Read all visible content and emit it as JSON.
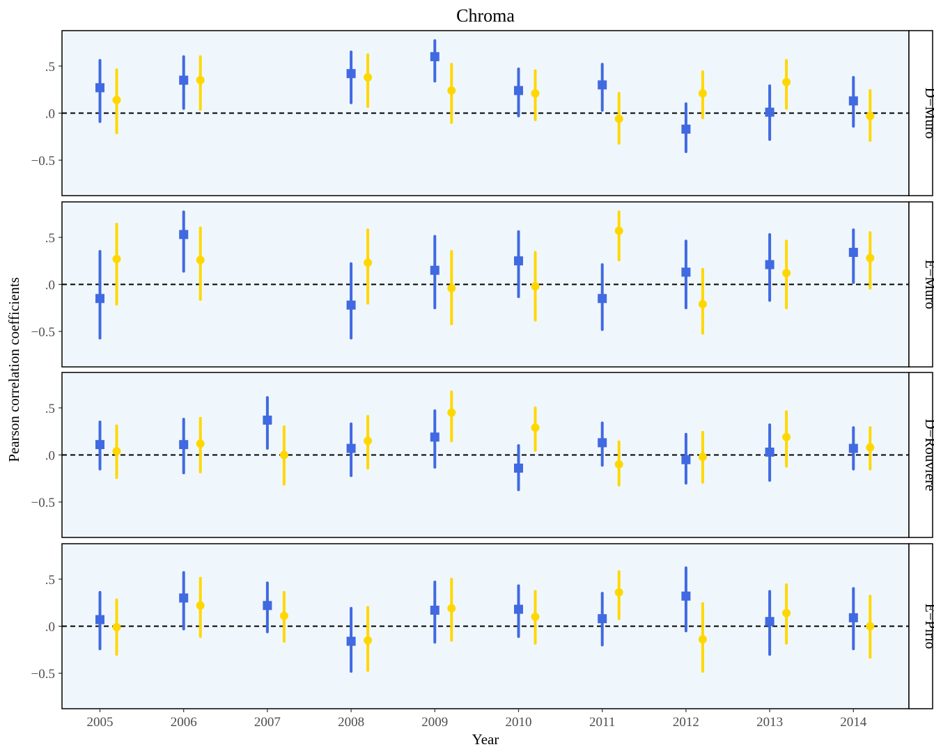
{
  "chart_data": {
    "type": "scatter",
    "title": "Chroma",
    "xlabel": "Year",
    "ylabel": "Pearson correlation coefficients",
    "x_ticks": [
      "2005",
      "2006",
      "2007",
      "2008",
      "2009",
      "2010",
      "2011",
      "2012",
      "2013",
      "2014"
    ],
    "y_ticks": [
      {
        "value": 0.5,
        "label": ".5"
      },
      {
        "value": 0.0,
        "label": ".0"
      },
      {
        "value": -0.5,
        "label": "−0.5"
      }
    ],
    "ylim": [
      -0.88,
      0.88
    ],
    "reference_line": {
      "value": 0,
      "style": "dashed"
    },
    "panel_background": "#eff7fc",
    "series_styles": [
      {
        "key": "a",
        "color": "#4169e1",
        "marker": "square",
        "x_offset": 0
      },
      {
        "key": "b",
        "color": "#ffd700",
        "marker": "circle",
        "x_offset": 0.2
      }
    ],
    "panels": [
      {
        "label": "D−Muro",
        "a": [
          {
            "x": "2005",
            "y": 0.27,
            "lo": -0.09,
            "hi": 0.56
          },
          {
            "x": "2006",
            "y": 0.35,
            "lo": 0.05,
            "hi": 0.6
          },
          {
            "x": "2008",
            "y": 0.42,
            "lo": 0.11,
            "hi": 0.65
          },
          {
            "x": "2009",
            "y": 0.6,
            "lo": 0.34,
            "hi": 0.77
          },
          {
            "x": "2010",
            "y": 0.24,
            "lo": -0.03,
            "hi": 0.47
          },
          {
            "x": "2011",
            "y": 0.3,
            "lo": 0.03,
            "hi": 0.52
          },
          {
            "x": "2012",
            "y": -0.17,
            "lo": -0.41,
            "hi": 0.1
          },
          {
            "x": "2013",
            "y": 0.01,
            "lo": -0.28,
            "hi": 0.29
          },
          {
            "x": "2014",
            "y": 0.13,
            "lo": -0.14,
            "hi": 0.38
          }
        ],
        "b": [
          {
            "x": "2005",
            "y": 0.14,
            "lo": -0.21,
            "hi": 0.46
          },
          {
            "x": "2006",
            "y": 0.35,
            "lo": 0.04,
            "hi": 0.6
          },
          {
            "x": "2008",
            "y": 0.38,
            "lo": 0.07,
            "hi": 0.62
          },
          {
            "x": "2009",
            "y": 0.24,
            "lo": -0.1,
            "hi": 0.52
          },
          {
            "x": "2010",
            "y": 0.21,
            "lo": -0.07,
            "hi": 0.45
          },
          {
            "x": "2011",
            "y": -0.06,
            "lo": -0.32,
            "hi": 0.21
          },
          {
            "x": "2012",
            "y": 0.21,
            "lo": -0.05,
            "hi": 0.44
          },
          {
            "x": "2013",
            "y": 0.33,
            "lo": 0.05,
            "hi": 0.56
          },
          {
            "x": "2014",
            "y": -0.03,
            "lo": -0.29,
            "hi": 0.24
          }
        ]
      },
      {
        "label": "E−Muro",
        "a": [
          {
            "x": "2005",
            "y": -0.15,
            "lo": -0.57,
            "hi": 0.35
          },
          {
            "x": "2006",
            "y": 0.53,
            "lo": 0.14,
            "hi": 0.77
          },
          {
            "x": "2008",
            "y": -0.22,
            "lo": -0.57,
            "hi": 0.22
          },
          {
            "x": "2009",
            "y": 0.15,
            "lo": -0.25,
            "hi": 0.51
          },
          {
            "x": "2010",
            "y": 0.25,
            "lo": -0.13,
            "hi": 0.56
          },
          {
            "x": "2011",
            "y": -0.15,
            "lo": -0.48,
            "hi": 0.21
          },
          {
            "x": "2012",
            "y": 0.13,
            "lo": -0.25,
            "hi": 0.46
          },
          {
            "x": "2013",
            "y": 0.21,
            "lo": -0.17,
            "hi": 0.53
          },
          {
            "x": "2014",
            "y": 0.34,
            "lo": 0.02,
            "hi": 0.58
          }
        ],
        "b": [
          {
            "x": "2005",
            "y": 0.27,
            "lo": -0.21,
            "hi": 0.64
          },
          {
            "x": "2006",
            "y": 0.26,
            "lo": -0.16,
            "hi": 0.6
          },
          {
            "x": "2008",
            "y": 0.23,
            "lo": -0.2,
            "hi": 0.58
          },
          {
            "x": "2009",
            "y": -0.04,
            "lo": -0.42,
            "hi": 0.35
          },
          {
            "x": "2010",
            "y": -0.02,
            "lo": -0.38,
            "hi": 0.34
          },
          {
            "x": "2011",
            "y": 0.57,
            "lo": 0.26,
            "hi": 0.77
          },
          {
            "x": "2012",
            "y": -0.21,
            "lo": -0.52,
            "hi": 0.16
          },
          {
            "x": "2013",
            "y": 0.12,
            "lo": -0.25,
            "hi": 0.46
          },
          {
            "x": "2014",
            "y": 0.28,
            "lo": -0.04,
            "hi": 0.55
          }
        ]
      },
      {
        "label": "D−Rouvière",
        "a": [
          {
            "x": "2005",
            "y": 0.11,
            "lo": -0.15,
            "hi": 0.35
          },
          {
            "x": "2006",
            "y": 0.11,
            "lo": -0.19,
            "hi": 0.38
          },
          {
            "x": "2007",
            "y": 0.37,
            "lo": 0.07,
            "hi": 0.61
          },
          {
            "x": "2008",
            "y": 0.07,
            "lo": -0.22,
            "hi": 0.33
          },
          {
            "x": "2009",
            "y": 0.19,
            "lo": -0.13,
            "hi": 0.47
          },
          {
            "x": "2010",
            "y": -0.14,
            "lo": -0.37,
            "hi": 0.1
          },
          {
            "x": "2011",
            "y": 0.13,
            "lo": -0.11,
            "hi": 0.34
          },
          {
            "x": "2012",
            "y": -0.05,
            "lo": -0.3,
            "hi": 0.22
          },
          {
            "x": "2013",
            "y": 0.03,
            "lo": -0.27,
            "hi": 0.32
          },
          {
            "x": "2014",
            "y": 0.07,
            "lo": -0.15,
            "hi": 0.29
          }
        ],
        "b": [
          {
            "x": "2005",
            "y": 0.04,
            "lo": -0.24,
            "hi": 0.31
          },
          {
            "x": "2006",
            "y": 0.12,
            "lo": -0.18,
            "hi": 0.39
          },
          {
            "x": "2007",
            "y": 0.0,
            "lo": -0.31,
            "hi": 0.3
          },
          {
            "x": "2008",
            "y": 0.15,
            "lo": -0.14,
            "hi": 0.41
          },
          {
            "x": "2009",
            "y": 0.45,
            "lo": 0.15,
            "hi": 0.67
          },
          {
            "x": "2010",
            "y": 0.29,
            "lo": 0.05,
            "hi": 0.5
          },
          {
            "x": "2011",
            "y": -0.1,
            "lo": -0.32,
            "hi": 0.14
          },
          {
            "x": "2012",
            "y": -0.02,
            "lo": -0.29,
            "hi": 0.24
          },
          {
            "x": "2013",
            "y": 0.19,
            "lo": -0.12,
            "hi": 0.46
          },
          {
            "x": "2014",
            "y": 0.08,
            "lo": -0.15,
            "hi": 0.29
          }
        ]
      },
      {
        "label": "E−Pirio",
        "a": [
          {
            "x": "2005",
            "y": 0.07,
            "lo": -0.24,
            "hi": 0.36
          },
          {
            "x": "2006",
            "y": 0.3,
            "lo": -0.03,
            "hi": 0.57
          },
          {
            "x": "2007",
            "y": 0.22,
            "lo": -0.06,
            "hi": 0.46
          },
          {
            "x": "2008",
            "y": -0.16,
            "lo": -0.48,
            "hi": 0.19
          },
          {
            "x": "2009",
            "y": 0.17,
            "lo": -0.17,
            "hi": 0.47
          },
          {
            "x": "2010",
            "y": 0.18,
            "lo": -0.11,
            "hi": 0.43
          },
          {
            "x": "2011",
            "y": 0.08,
            "lo": -0.2,
            "hi": 0.35
          },
          {
            "x": "2012",
            "y": 0.32,
            "lo": -0.05,
            "hi": 0.62
          },
          {
            "x": "2013",
            "y": 0.05,
            "lo": -0.3,
            "hi": 0.37
          },
          {
            "x": "2014",
            "y": 0.09,
            "lo": -0.24,
            "hi": 0.4
          }
        ],
        "b": [
          {
            "x": "2005",
            "y": -0.01,
            "lo": -0.3,
            "hi": 0.28
          },
          {
            "x": "2006",
            "y": 0.22,
            "lo": -0.11,
            "hi": 0.51
          },
          {
            "x": "2007",
            "y": 0.11,
            "lo": -0.16,
            "hi": 0.36
          },
          {
            "x": "2008",
            "y": -0.15,
            "lo": -0.47,
            "hi": 0.2
          },
          {
            "x": "2009",
            "y": 0.19,
            "lo": -0.15,
            "hi": 0.5
          },
          {
            "x": "2010",
            "y": 0.1,
            "lo": -0.18,
            "hi": 0.37
          },
          {
            "x": "2011",
            "y": 0.36,
            "lo": 0.08,
            "hi": 0.58
          },
          {
            "x": "2012",
            "y": -0.14,
            "lo": -0.48,
            "hi": 0.24
          },
          {
            "x": "2013",
            "y": 0.14,
            "lo": -0.18,
            "hi": 0.44
          },
          {
            "x": "2014",
            "y": 0.0,
            "lo": -0.33,
            "hi": 0.32
          }
        ]
      }
    ]
  }
}
